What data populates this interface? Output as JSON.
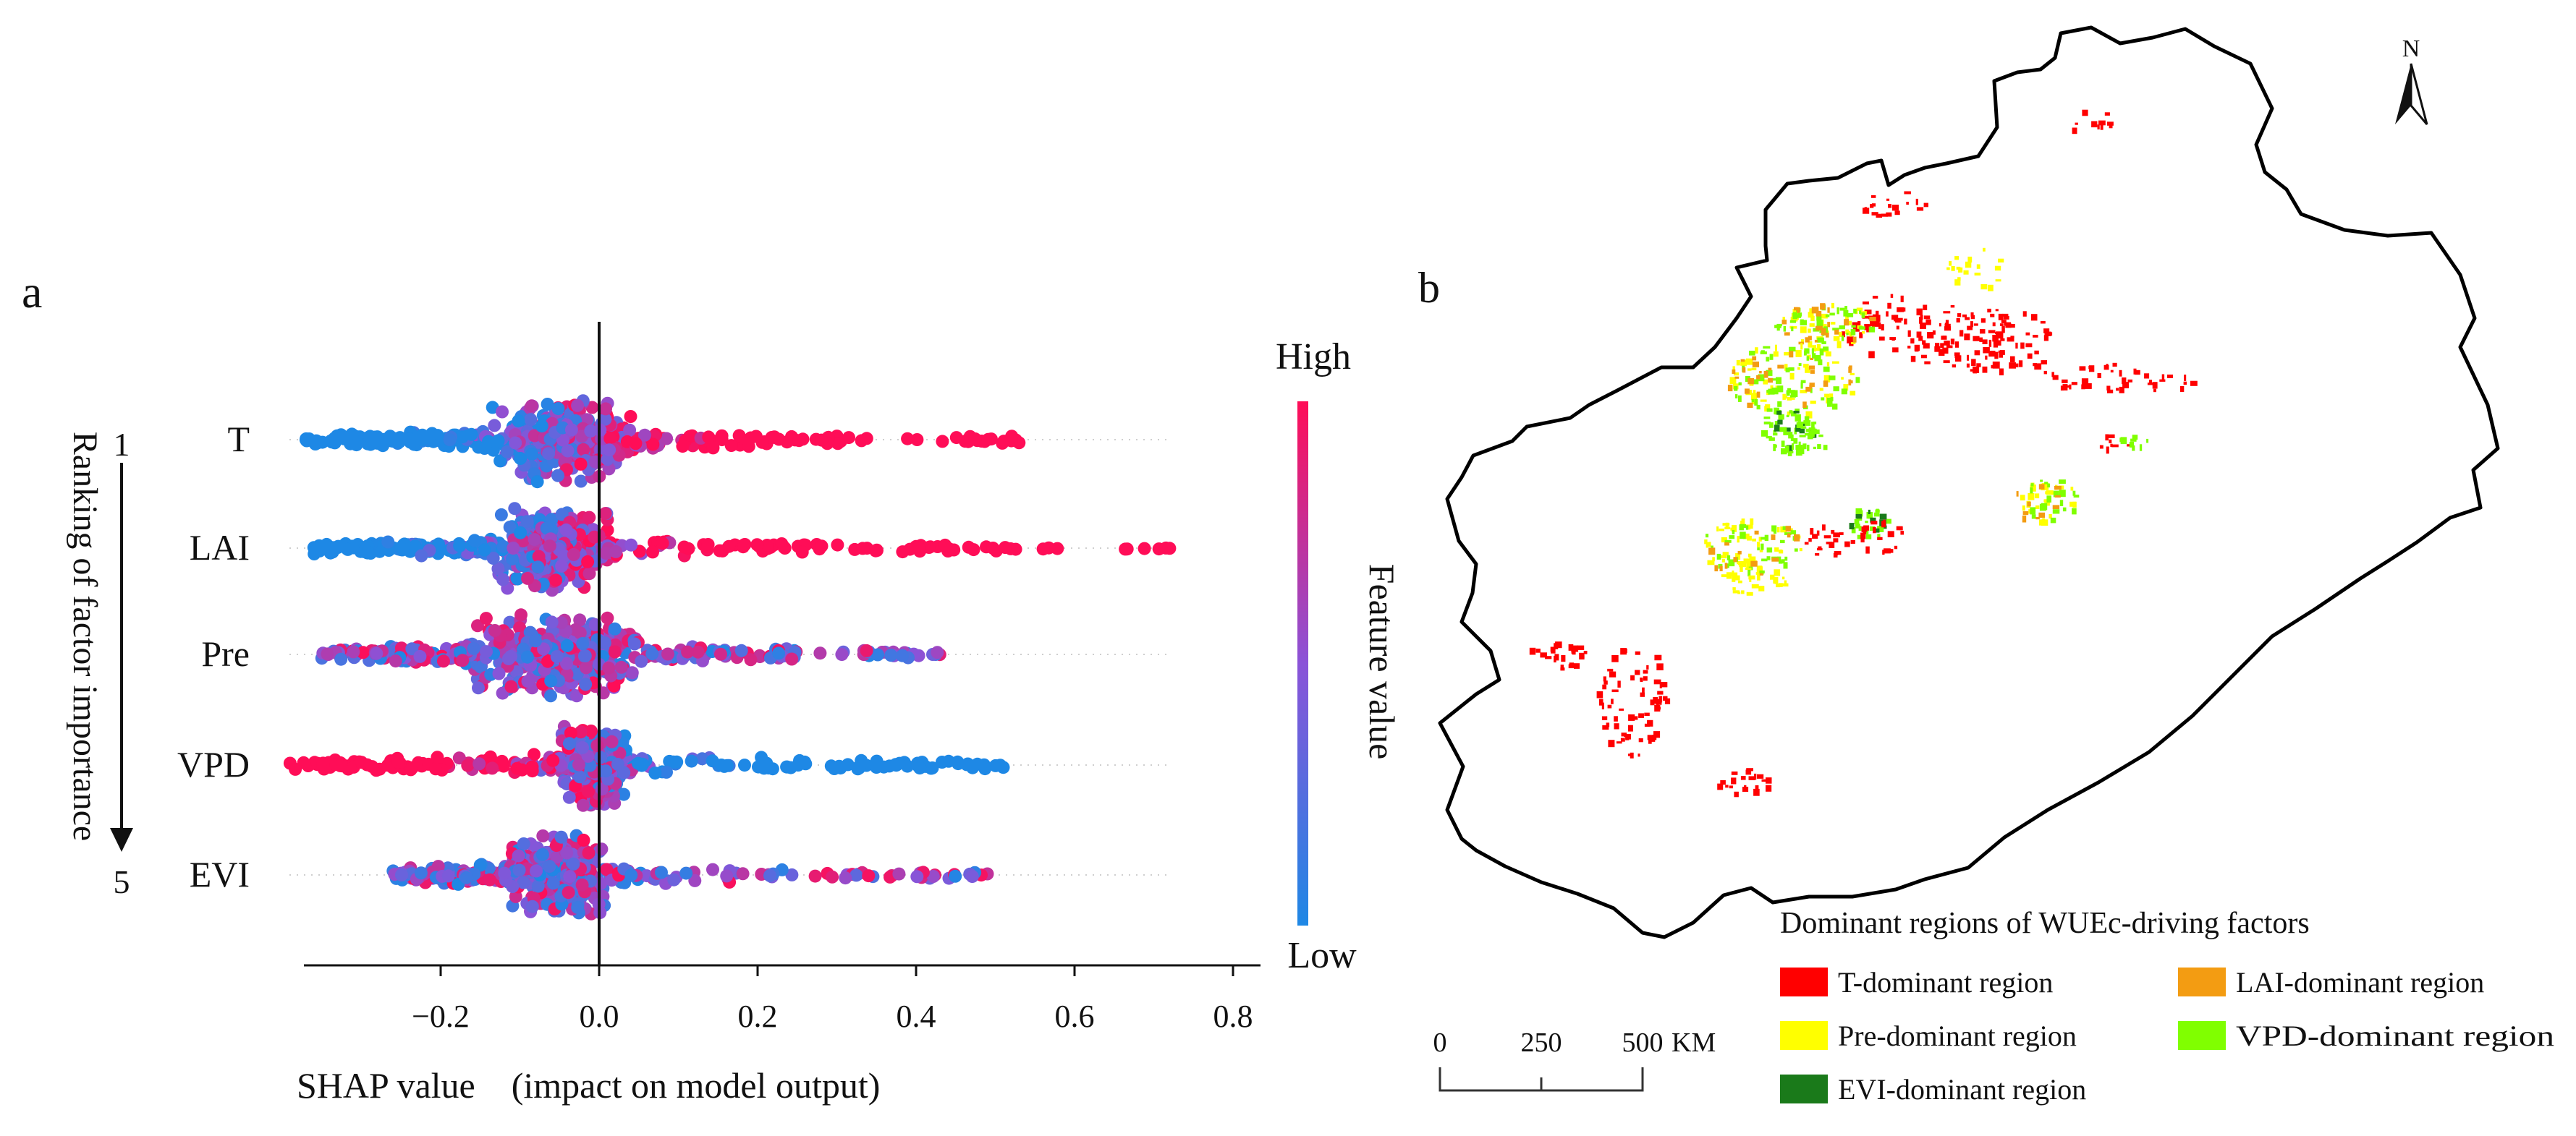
{
  "panel_a": {
    "label": "a",
    "ranking": {
      "label": "Ranking of factor importance",
      "top_rank": "1",
      "bottom_rank": "5"
    },
    "colorbar": {
      "high": "High",
      "low": "Low",
      "title": "Feature value",
      "high_color": "#ff0d57",
      "mid_color": "#8a53d8",
      "low_color": "#1e88e5"
    }
  },
  "chart_data": {
    "type": "scatter",
    "subtype": "shap-beeswarm",
    "xlabel": "SHAP value　(impact on model output)",
    "xlim": [
      -0.4,
      0.8
    ],
    "xticks": [
      "−0.2",
      "0.0",
      "0.2",
      "0.4",
      "0.6",
      "0.8"
    ],
    "xtick_values": [
      -0.2,
      0.0,
      0.2,
      0.4,
      0.6,
      0.8
    ],
    "features": [
      {
        "name": "T",
        "min": -0.37,
        "max": 0.53,
        "core": [
          -0.12,
          0.03
        ],
        "high_side": "right"
      },
      {
        "name": "LAI",
        "min": -0.36,
        "max": 0.72,
        "core": [
          -0.12,
          0.0
        ],
        "high_side": "right"
      },
      {
        "name": "Pre",
        "min": -0.35,
        "max": 0.43,
        "core": [
          -0.14,
          0.04
        ],
        "high_side": "mixed"
      },
      {
        "name": "VPD",
        "min": -0.39,
        "max": 0.51,
        "core": [
          -0.04,
          0.03
        ],
        "high_side": "left"
      },
      {
        "name": "EVI",
        "min": -0.26,
        "max": 0.49,
        "core": [
          -0.1,
          0.0
        ],
        "high_side": "mixed"
      }
    ]
  },
  "panel_b": {
    "label": "b",
    "north": "N",
    "legend": {
      "title": "Dominant regions of WUEc-driving factors",
      "items": [
        {
          "label": "T-dominant region",
          "color": "#ff0000"
        },
        {
          "label": "LAI-dominant region",
          "color": "#f39c12"
        },
        {
          "label": "Pre-dominant region",
          "color": "#ffff00"
        },
        {
          "label": "VPD-dominant region",
          "color": "#80ff00"
        },
        {
          "label": "EVI-dominant region",
          "color": "#1a7a1a"
        }
      ]
    },
    "scalebar": {
      "ticks": [
        "0",
        "250",
        "500"
      ],
      "unit": "KM"
    }
  }
}
